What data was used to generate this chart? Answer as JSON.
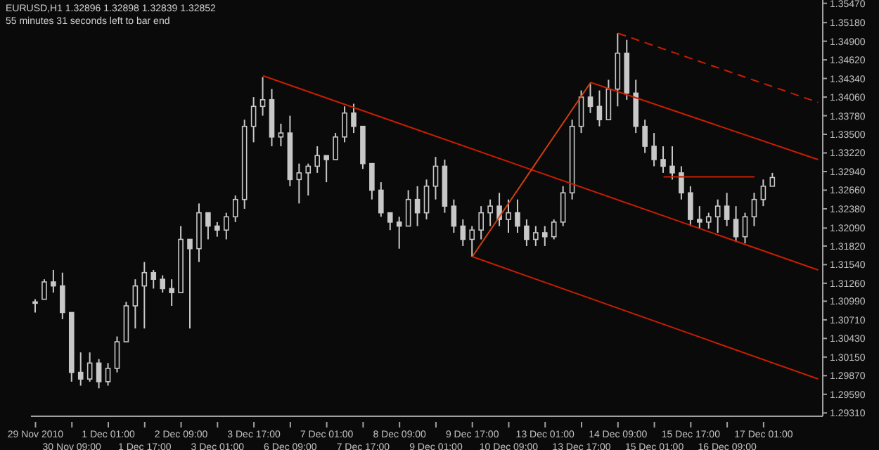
{
  "chart_data": {
    "type": "candlestick",
    "title": "EURUSD,H1  1.32896 1.32898 1.32839 1.32852",
    "subtitle": "55 minutes 31 seconds left to bar end",
    "categories": [
      "29 Nov 2010",
      null,
      null,
      null,
      "30 Nov 09:00",
      null,
      null,
      null,
      "1 Dec 01:00",
      null,
      null,
      null,
      "1 Dec 17:00",
      null,
      null,
      null,
      "2 Dec 09:00",
      null,
      null,
      null,
      "3 Dec 01:00",
      null,
      null,
      null,
      "3 Dec 17:00",
      null,
      null,
      null,
      "6 Dec 09:00",
      null,
      null,
      null,
      "7 Dec 01:00",
      null,
      null,
      null,
      "7 Dec 17:00",
      null,
      null,
      null,
      "8 Dec 09:00",
      null,
      null,
      null,
      "9 Dec 01:00",
      null,
      null,
      null,
      "9 Dec 17:00",
      null,
      null,
      null,
      "10 Dec 09:00",
      null,
      null,
      null,
      "13 Dec 01:00",
      null,
      null,
      null,
      "13 Dec 17:00",
      null,
      null,
      null,
      "14 Dec 09:00",
      null,
      null,
      null,
      "15 Dec 01:00",
      null,
      null,
      null,
      "15 Dec 17:00",
      null,
      null,
      null,
      "16 Dec 09:00",
      null,
      null,
      null,
      "17 Dec 01:00",
      null,
      null,
      null,
      null,
      null,
      null
    ],
    "color": "#c8c8c8",
    "ohlc": [
      [
        1.3098,
        1.3102,
        1.3082,
        1.3096
      ],
      [
        1.3102,
        1.3132,
        1.3102,
        1.3128
      ],
      [
        1.3128,
        1.3146,
        1.3112,
        1.3122
      ],
      [
        1.3122,
        1.3142,
        1.3072,
        1.3082
      ],
      [
        1.3082,
        1.3082,
        1.2978,
        1.2992
      ],
      [
        1.2992,
        1.3022,
        1.2972,
        1.2982
      ],
      [
        1.2982,
        1.3022,
        1.2978,
        1.3006
      ],
      [
        1.3006,
        1.3012,
        1.2968,
        1.2978
      ],
      [
        1.2978,
        1.3006,
        1.2972,
        1.2998
      ],
      [
        1.2998,
        1.3046,
        1.2992,
        1.3038
      ],
      [
        1.3038,
        1.3098,
        1.3038,
        1.3092
      ],
      [
        1.3092,
        1.3132,
        1.3058,
        1.3122
      ],
      [
        1.3122,
        1.3158,
        1.3058,
        1.3142
      ],
      [
        1.3142,
        1.3146,
        1.3118,
        1.3132
      ],
      [
        1.3132,
        1.3138,
        1.3112,
        1.3118
      ],
      [
        1.3118,
        1.3132,
        1.3092,
        1.3112
      ],
      [
        1.3112,
        1.3212,
        1.3112,
        1.3192
      ],
      [
        1.3192,
        1.3192,
        1.3058,
        1.3178
      ],
      [
        1.3178,
        1.3246,
        1.3158,
        1.3232
      ],
      [
        1.3232,
        1.3232,
        1.3192,
        1.3212
      ],
      [
        1.3212,
        1.3218,
        1.3196,
        1.3206
      ],
      [
        1.3206,
        1.3232,
        1.3192,
        1.3226
      ],
      [
        1.3226,
        1.3258,
        1.3218,
        1.3252
      ],
      [
        1.3252,
        1.3372,
        1.3238,
        1.3362
      ],
      [
        1.3362,
        1.3406,
        1.3338,
        1.3392
      ],
      [
        1.3392,
        1.3436,
        1.3378,
        1.3402
      ],
      [
        1.3402,
        1.3418,
        1.3332,
        1.3346
      ],
      [
        1.3346,
        1.3366,
        1.3332,
        1.3352
      ],
      [
        1.3352,
        1.3378,
        1.3272,
        1.3282
      ],
      [
        1.3282,
        1.3306,
        1.3246,
        1.3292
      ],
      [
        1.3292,
        1.3306,
        1.3258,
        1.3302
      ],
      [
        1.3302,
        1.3332,
        1.3292,
        1.3318
      ],
      [
        1.3318,
        1.3318,
        1.3278,
        1.3312
      ],
      [
        1.3312,
        1.3352,
        1.3312,
        1.3346
      ],
      [
        1.3346,
        1.3392,
        1.3338,
        1.3382
      ],
      [
        1.3382,
        1.3396,
        1.3352,
        1.3362
      ],
      [
        1.3362,
        1.3362,
        1.3298,
        1.3306
      ],
      [
        1.3306,
        1.3306,
        1.3252,
        1.3266
      ],
      [
        1.3266,
        1.3278,
        1.3226,
        1.3232
      ],
      [
        1.3232,
        1.3232,
        1.3206,
        1.3218
      ],
      [
        1.3218,
        1.3226,
        1.3178,
        1.3212
      ],
      [
        1.3212,
        1.3266,
        1.3212,
        1.3252
      ],
      [
        1.3252,
        1.3272,
        1.3212,
        1.3232
      ],
      [
        1.3232,
        1.3282,
        1.3222,
        1.3272
      ],
      [
        1.3272,
        1.3316,
        1.3252,
        1.3302
      ],
      [
        1.3302,
        1.3312,
        1.3232,
        1.3242
      ],
      [
        1.3242,
        1.3252,
        1.3202,
        1.3212
      ],
      [
        1.3212,
        1.3222,
        1.3182,
        1.3192
      ],
      [
        1.3192,
        1.3212,
        1.3166,
        1.3206
      ],
      [
        1.3206,
        1.3242,
        1.3192,
        1.3232
      ],
      [
        1.3232,
        1.3252,
        1.3212,
        1.3242
      ],
      [
        1.3242,
        1.3262,
        1.3212,
        1.3222
      ],
      [
        1.3222,
        1.3252,
        1.3202,
        1.3232
      ],
      [
        1.3232,
        1.3252,
        1.3202,
        1.3212
      ],
      [
        1.3212,
        1.3222,
        1.3182,
        1.3192
      ],
      [
        1.3192,
        1.3212,
        1.3182,
        1.3202
      ],
      [
        1.3202,
        1.3212,
        1.3182,
        1.3196
      ],
      [
        1.3196,
        1.3222,
        1.3192,
        1.3218
      ],
      [
        1.3218,
        1.3272,
        1.3212,
        1.3262
      ],
      [
        1.3262,
        1.3372,
        1.3252,
        1.3362
      ],
      [
        1.3362,
        1.3416,
        1.3352,
        1.3406
      ],
      [
        1.3406,
        1.3426,
        1.3382,
        1.3392
      ],
      [
        1.3392,
        1.3416,
        1.3362,
        1.3372
      ],
      [
        1.3372,
        1.3432,
        1.3372,
        1.3418
      ],
      [
        1.3418,
        1.3502,
        1.3392,
        1.3472
      ],
      [
        1.3472,
        1.3492,
        1.3402,
        1.3412
      ],
      [
        1.3412,
        1.3432,
        1.3352,
        1.3362
      ],
      [
        1.3362,
        1.3372,
        1.3322,
        1.3332
      ],
      [
        1.3332,
        1.3352,
        1.3302,
        1.3312
      ],
      [
        1.3312,
        1.3332,
        1.3292,
        1.3302
      ],
      [
        1.3302,
        1.3332,
        1.3282,
        1.3292
      ],
      [
        1.3292,
        1.3302,
        1.3252,
        1.3262
      ],
      [
        1.3262,
        1.3272,
        1.3212,
        1.3222
      ],
      [
        1.3222,
        1.3242,
        1.3208,
        1.3218
      ],
      [
        1.3218,
        1.3232,
        1.3208,
        1.3226
      ],
      [
        1.3226,
        1.3252,
        1.3202,
        1.3242
      ],
      [
        1.3242,
        1.3262,
        1.3212,
        1.3222
      ],
      [
        1.3222,
        1.3242,
        1.3188,
        1.3196
      ],
      [
        1.3196,
        1.3232,
        1.3186,
        1.3226
      ],
      [
        1.3226,
        1.3262,
        1.3212,
        1.3252
      ],
      [
        1.3252,
        1.3282,
        1.3242,
        1.3272
      ],
      [
        1.3272,
        1.3292,
        1.3272,
        1.3285
      ],
      null,
      null,
      null,
      null,
      null
    ],
    "series": [
      {
        "type": "line",
        "color": "#c81e00",
        "line_style": "solid",
        "values": [
          null,
          null,
          null,
          null,
          null,
          null,
          null,
          null,
          null,
          null,
          null,
          null,
          null,
          null,
          null,
          null,
          null,
          null,
          null,
          null,
          null,
          null,
          null,
          null,
          null,
          1.3438,
          null,
          null,
          null,
          null,
          null,
          null,
          null,
          null,
          null,
          null,
          null,
          null,
          null,
          null,
          null,
          null,
          null,
          null,
          null,
          null,
          null,
          null,
          null,
          null,
          null,
          null,
          null,
          null,
          null,
          null,
          null,
          null,
          null,
          null,
          null,
          null,
          null,
          null,
          null,
          null,
          null,
          null,
          null,
          null,
          null,
          null,
          null,
          null,
          null,
          null,
          null,
          null,
          null,
          null,
          null,
          null,
          null,
          null,
          null,
          null,
          1.3146
        ]
      },
      {
        "type": "line",
        "color": "#c81e00",
        "line_style": "dashed",
        "values": [
          null,
          null,
          null,
          null,
          null,
          null,
          null,
          null,
          null,
          null,
          null,
          null,
          null,
          null,
          null,
          null,
          null,
          null,
          null,
          null,
          null,
          null,
          null,
          null,
          null,
          null,
          null,
          null,
          null,
          null,
          null,
          null,
          null,
          null,
          null,
          null,
          null,
          null,
          null,
          null,
          null,
          null,
          null,
          null,
          null,
          null,
          null,
          null,
          null,
          null,
          null,
          null,
          null,
          null,
          null,
          null,
          null,
          null,
          null,
          null,
          null,
          null,
          null,
          null,
          1.3502,
          null,
          null,
          null,
          null,
          null,
          null,
          null,
          null,
          null,
          null,
          null,
          null,
          null,
          null,
          null,
          null,
          null,
          null,
          null,
          null,
          null,
          1.3398
        ]
      },
      {
        "type": "line",
        "color": "#c81e00",
        "line_style": "solid",
        "values": [
          null,
          null,
          null,
          null,
          null,
          null,
          null,
          null,
          null,
          null,
          null,
          null,
          null,
          null,
          null,
          null,
          null,
          null,
          null,
          null,
          null,
          null,
          null,
          null,
          null,
          null,
          null,
          null,
          null,
          null,
          null,
          null,
          null,
          null,
          null,
          null,
          null,
          null,
          null,
          null,
          null,
          null,
          null,
          null,
          null,
          null,
          null,
          null,
          null,
          null,
          null,
          null,
          null,
          null,
          null,
          null,
          null,
          null,
          null,
          null,
          null,
          1.3428,
          null,
          null,
          null,
          null,
          null,
          null,
          null,
          null,
          null,
          null,
          null,
          null,
          null,
          null,
          null,
          null,
          null,
          null,
          null,
          null,
          null,
          null,
          null,
          null,
          1.3312
        ]
      },
      {
        "type": "line",
        "color": "#c81e00",
        "line_style": "solid",
        "values": [
          null,
          null,
          null,
          null,
          null,
          null,
          null,
          null,
          null,
          null,
          null,
          null,
          null,
          null,
          null,
          null,
          null,
          null,
          null,
          null,
          null,
          null,
          null,
          null,
          null,
          null,
          null,
          null,
          null,
          null,
          null,
          null,
          null,
          null,
          null,
          null,
          null,
          null,
          null,
          null,
          null,
          null,
          null,
          null,
          null,
          null,
          null,
          null,
          1.3166,
          null,
          null,
          null,
          null,
          null,
          null,
          null,
          null,
          null,
          null,
          null,
          null,
          null,
          null,
          null,
          null,
          null,
          null,
          null,
          null,
          null,
          null,
          null,
          null,
          null,
          null,
          null,
          null,
          null,
          null,
          null,
          null,
          null,
          null,
          null,
          null,
          null,
          1.2982
        ]
      },
      {
        "type": "line",
        "color": "#d04010",
        "line_style": "solid",
        "values": [
          null,
          null,
          null,
          null,
          null,
          null,
          null,
          null,
          null,
          null,
          null,
          null,
          null,
          null,
          null,
          null,
          null,
          null,
          null,
          null,
          null,
          null,
          null,
          null,
          null,
          null,
          null,
          null,
          null,
          null,
          null,
          null,
          null,
          null,
          null,
          null,
          null,
          null,
          null,
          null,
          null,
          null,
          null,
          null,
          null,
          null,
          null,
          null,
          1.3166,
          null,
          null,
          null,
          null,
          null,
          null,
          null,
          null,
          null,
          null,
          null,
          null,
          1.3428,
          null,
          null,
          null,
          null,
          null,
          null,
          null,
          null,
          null,
          null,
          null,
          null,
          null,
          null,
          null,
          null,
          null,
          null,
          null,
          null,
          null,
          null,
          null,
          null,
          null
        ]
      },
      {
        "type": "line",
        "color": "#c81e00",
        "line_style": "solid",
        "values": [
          null,
          null,
          null,
          null,
          null,
          null,
          null,
          null,
          null,
          null,
          null,
          null,
          null,
          null,
          null,
          null,
          null,
          null,
          null,
          null,
          null,
          null,
          null,
          null,
          null,
          null,
          null,
          null,
          null,
          null,
          null,
          null,
          null,
          null,
          null,
          null,
          null,
          null,
          null,
          null,
          null,
          null,
          null,
          null,
          null,
          null,
          null,
          null,
          null,
          null,
          null,
          null,
          null,
          null,
          null,
          null,
          null,
          null,
          null,
          null,
          null,
          null,
          null,
          null,
          null,
          null,
          null,
          null,
          null,
          1.3286,
          null,
          null,
          null,
          null,
          null,
          null,
          null,
          null,
          null,
          1.3286,
          null,
          null,
          null,
          null,
          null,
          null,
          null
        ]
      }
    ],
    "ylim": [
      1.2926,
      1.3552
    ],
    "yticks": [
      {
        "value": 1.3547,
        "label": "1.35470"
      },
      {
        "value": 1.3518,
        "label": "1.35180"
      },
      {
        "value": 1.349,
        "label": "1.34900"
      },
      {
        "value": 1.3462,
        "label": "1.34620"
      },
      {
        "value": 1.3434,
        "label": "1.34340"
      },
      {
        "value": 1.3406,
        "label": "1.34060"
      },
      {
        "value": 1.3378,
        "label": "1.33780"
      },
      {
        "value": 1.335,
        "label": "1.33500"
      },
      {
        "value": 1.3322,
        "label": "1.33220"
      },
      {
        "value": 1.3294,
        "label": "1.32940"
      },
      {
        "value": 1.3266,
        "label": "1.32660"
      },
      {
        "value": 1.3238,
        "label": "1.32380"
      },
      {
        "value": 1.3209,
        "label": "1.32090"
      },
      {
        "value": 1.3182,
        "label": "1.31820"
      },
      {
        "value": 1.3154,
        "label": "1.31540"
      },
      {
        "value": 1.3126,
        "label": "1.31260"
      },
      {
        "value": 1.3099,
        "label": "1.30990"
      },
      {
        "value": 1.3071,
        "label": "1.30710"
      },
      {
        "value": 1.3043,
        "label": "1.30430"
      },
      {
        "value": 1.3015,
        "label": "1.30150"
      },
      {
        "value": 1.2987,
        "label": "1.29870"
      },
      {
        "value": 1.2959,
        "label": "1.29590"
      },
      {
        "value": 1.2931,
        "label": "1.29310"
      }
    ],
    "grid": false,
    "legend": false
  }
}
